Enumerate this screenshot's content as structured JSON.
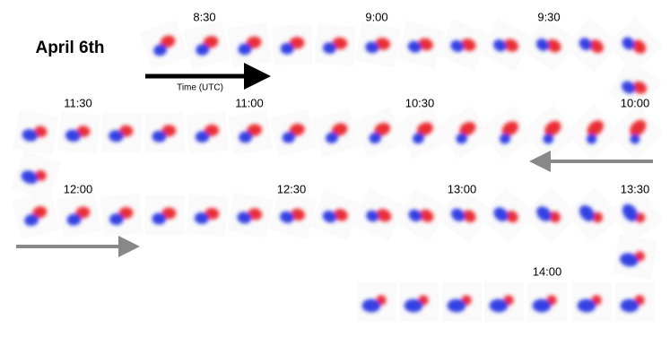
{
  "title": "April 6th",
  "arrow_label": "Time (UTC)",
  "time_labels": [
    "8:30",
    "9:00",
    "9:30",
    "10:00",
    "10:30",
    "11:00",
    "11:30",
    "12:00",
    "12:30",
    "13:00",
    "13:30",
    "14:00"
  ]
}
